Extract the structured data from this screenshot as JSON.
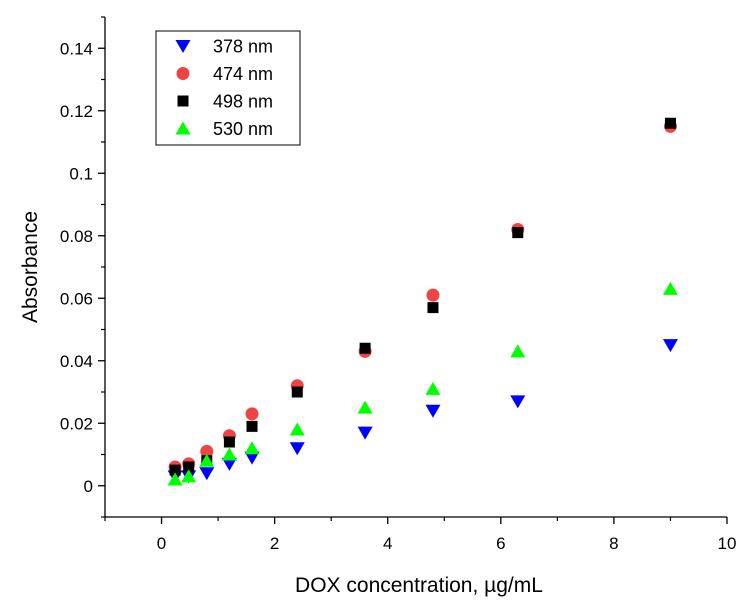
{
  "chart_data": {
    "type": "scatter",
    "title": "",
    "xlabel": "DOX concentration, µg/mL",
    "ylabel": "Absorbance",
    "xlim": [
      -1,
      10
    ],
    "ylim": [
      -0.01,
      0.15
    ],
    "xticks": [
      0,
      2,
      4,
      6,
      8,
      10
    ],
    "yticks": [
      0,
      0.02,
      0.04,
      0.06,
      0.08,
      0.1,
      0.12,
      0.14
    ],
    "xtick_labels": [
      "0",
      "2",
      "4",
      "6",
      "8",
      "10"
    ],
    "ytick_labels": [
      "0",
      "0.02",
      "0.04",
      "0.06",
      "0.08",
      "0.1",
      "0.12",
      "0.14"
    ],
    "legend_position": "top-left",
    "x": [
      0.24,
      0.48,
      0.8,
      1.2,
      1.6,
      2.4,
      3.6,
      4.8,
      6.3,
      9.0
    ],
    "series": [
      {
        "name": "378 nm",
        "marker": "triangle-down",
        "color": "#0000ff",
        "values": [
          0.003,
          0.003,
          0.004,
          0.007,
          0.009,
          0.012,
          0.017,
          0.024,
          0.027,
          0.045
        ]
      },
      {
        "name": "474 nm",
        "marker": "circle",
        "color": "#ef4444",
        "values": [
          0.006,
          0.007,
          0.011,
          0.016,
          0.023,
          0.032,
          0.043,
          0.061,
          0.082,
          0.115
        ]
      },
      {
        "name": "498 nm",
        "marker": "square",
        "color": "#000000",
        "values": [
          0.005,
          0.006,
          0.008,
          0.014,
          0.019,
          0.03,
          0.044,
          0.057,
          0.081,
          0.116
        ]
      },
      {
        "name": "530 nm",
        "marker": "triangle-up",
        "color": "#00ff00",
        "values": [
          0.002,
          0.003,
          0.008,
          0.01,
          0.012,
          0.018,
          0.025,
          0.031,
          0.043,
          0.063
        ]
      }
    ]
  }
}
